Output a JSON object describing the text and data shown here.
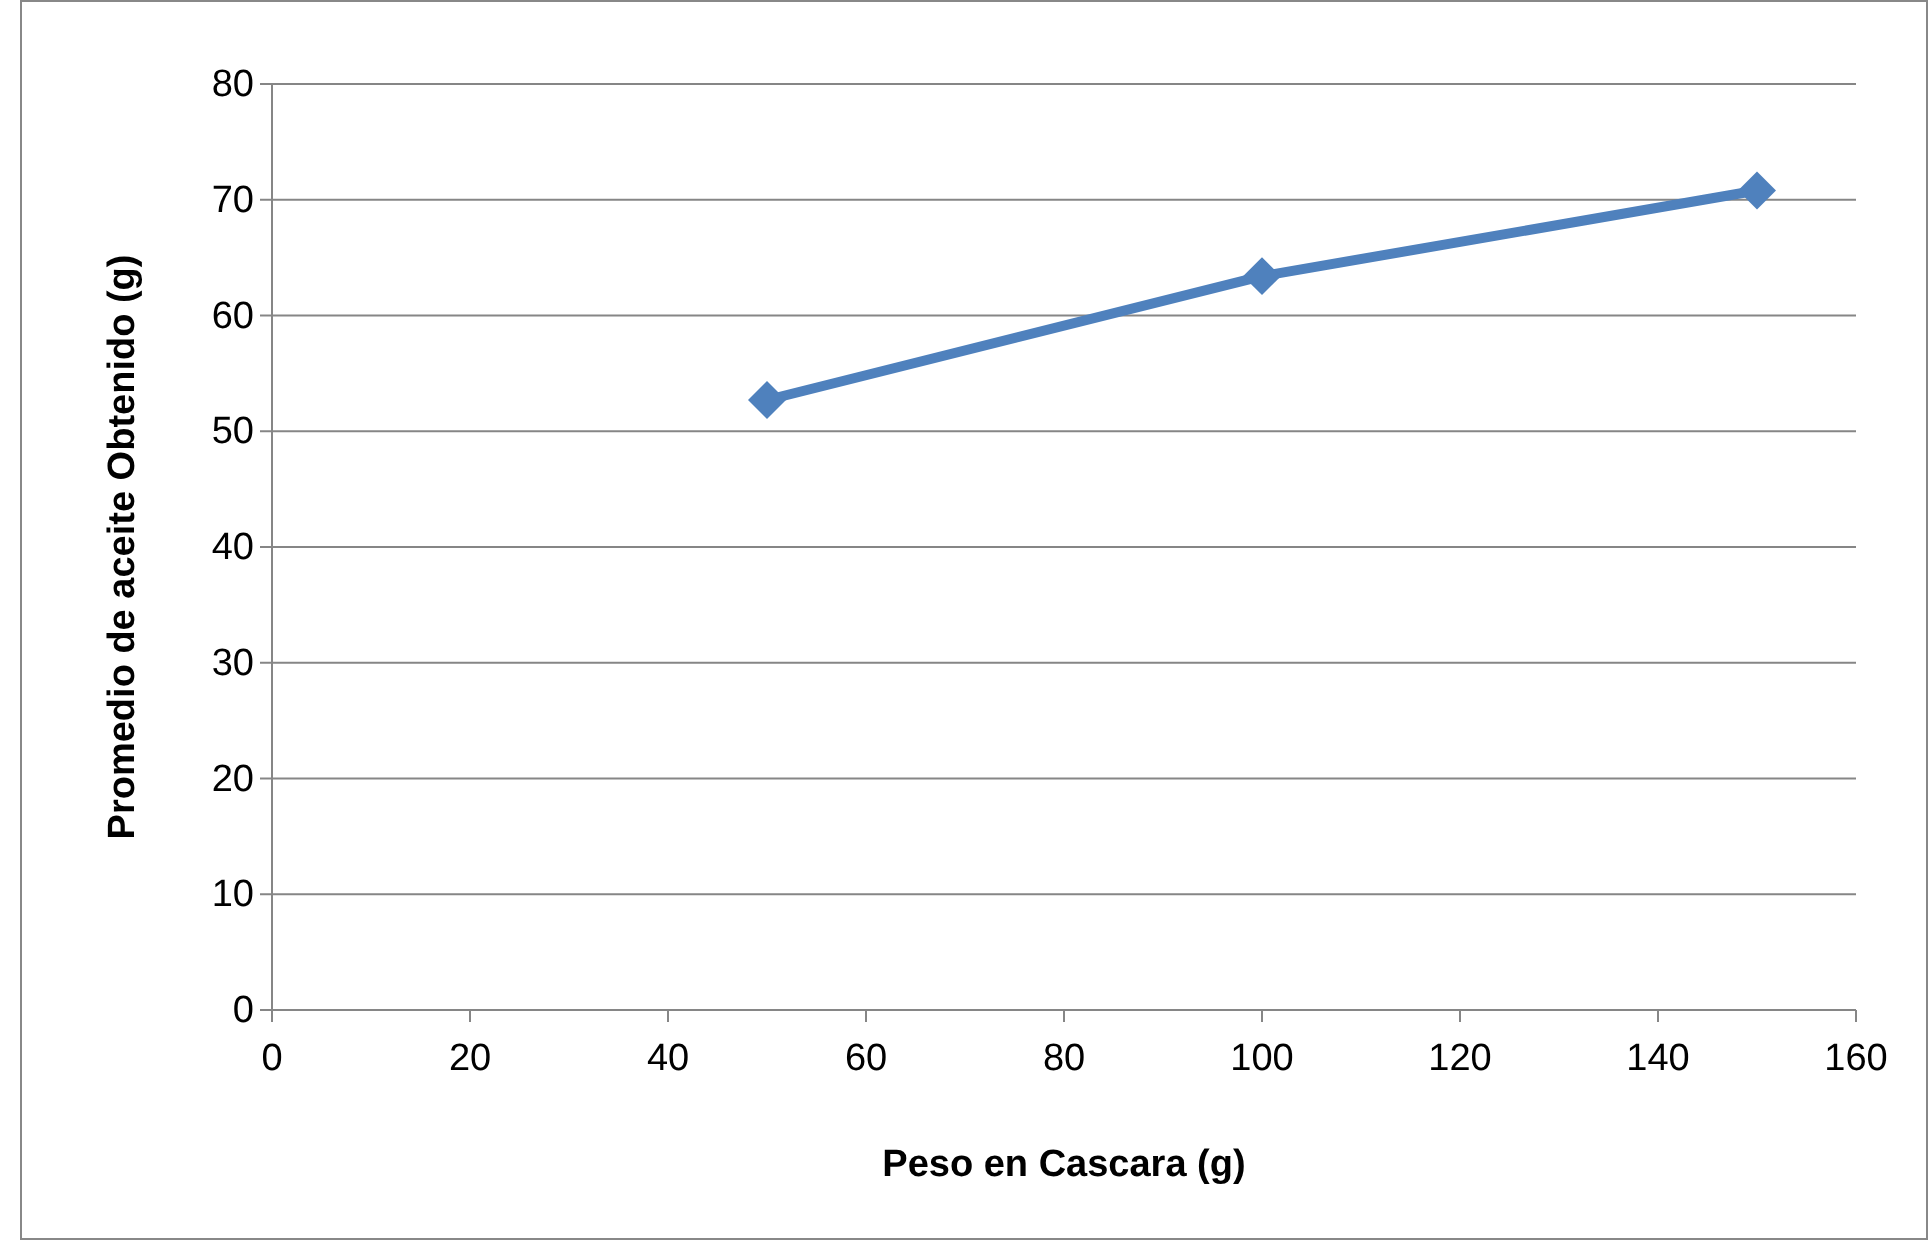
{
  "chart_data": {
    "type": "line",
    "xlabel": "Peso en Cascara (g)",
    "ylabel": "Promedio de aceite Obtenido (g)",
    "x": [
      50,
      100,
      150
    ],
    "series": [
      {
        "color": "#4f81bd",
        "values": [
          52.7,
          63.4,
          70.8
        ]
      }
    ],
    "xlim": [
      0,
      160
    ],
    "xticks": [
      0,
      20,
      40,
      60,
      80,
      100,
      120,
      140,
      160
    ],
    "ylim": [
      0,
      80
    ],
    "yticks": [
      0,
      10,
      20,
      30,
      40,
      50,
      60,
      70,
      80
    ],
    "grid": "y",
    "marker": "diamond",
    "line_style": "solid"
  }
}
